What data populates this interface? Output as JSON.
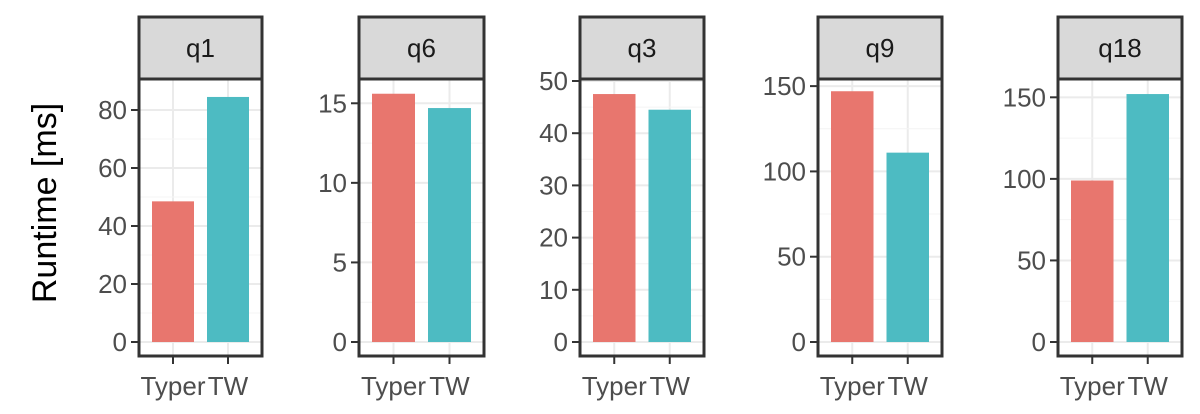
{
  "chart_data": {
    "type": "bar",
    "ylabel": "Runtime [ms]",
    "categories": [
      "Typer",
      "TW"
    ],
    "colors": {
      "Typer": "#E8766E",
      "TW": "#4DBBC2"
    },
    "grid": true,
    "facets": [
      {
        "title": "q1",
        "values": [
          48.5,
          84.5
        ],
        "ylim": [
          0,
          90
        ],
        "ticks": [
          0,
          20,
          40,
          60,
          80
        ]
      },
      {
        "title": "q6",
        "values": [
          15.6,
          14.7
        ],
        "ylim": [
          0,
          16.4
        ],
        "ticks": [
          0,
          5,
          10,
          15
        ]
      },
      {
        "title": "q3",
        "values": [
          47.5,
          44.5
        ],
        "ylim": [
          0,
          50
        ],
        "ticks": [
          0,
          10,
          20,
          30,
          40,
          50
        ]
      },
      {
        "title": "q9",
        "values": [
          147,
          111
        ],
        "ylim": [
          0,
          153
        ],
        "ticks": [
          0,
          50,
          100,
          150
        ]
      },
      {
        "title": "q18",
        "values": [
          99,
          152
        ],
        "ylim": [
          0,
          160
        ],
        "ticks": [
          0,
          50,
          100,
          150
        ]
      }
    ]
  }
}
